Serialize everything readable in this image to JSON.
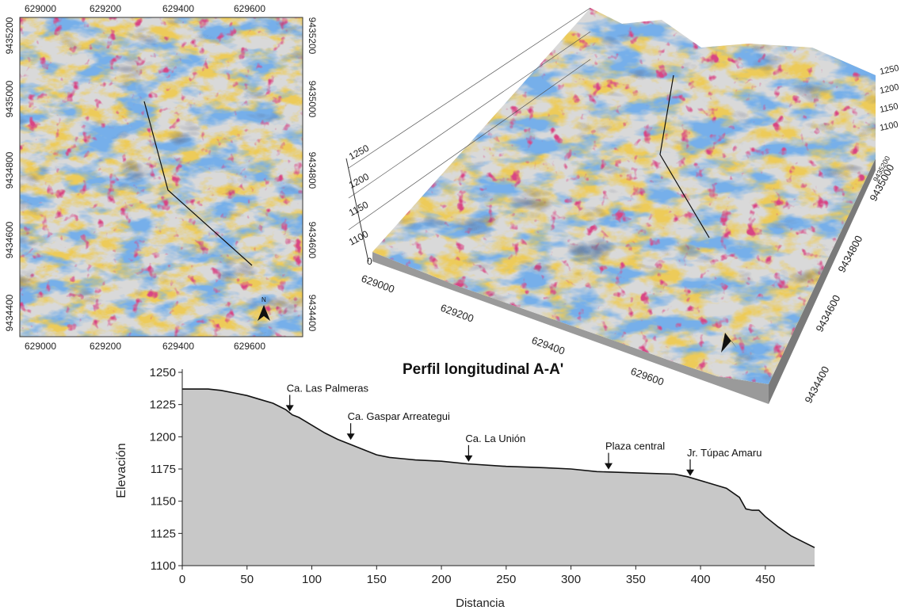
{
  "colors": {
    "blue": "#2f6fd0",
    "orange": "#d99a1a",
    "crimson": "#b0103a",
    "gray": "#cfcfcf",
    "profile_fill": "#c8c8c8",
    "profile_line": "#111111"
  },
  "map2d": {
    "x_ticks": [
      "629000",
      "629200",
      "629400",
      "629600"
    ],
    "y_ticks": [
      "9434400",
      "9434600",
      "9434800",
      "9435000",
      "9435200"
    ],
    "north_label": "N"
  },
  "map3d": {
    "x_ticks": [
      "629000",
      "629200",
      "629400",
      "629600"
    ],
    "y_ticks": [
      "9434400",
      "9434600",
      "9434800",
      "9435000",
      "9435200"
    ],
    "z_ticks_left": [
      "1100",
      "1150",
      "1200",
      "1250"
    ],
    "z_ticks_right": [
      "1100",
      "1150",
      "1200",
      "1250"
    ],
    "z_zero": "0"
  },
  "chart_data": {
    "type": "area",
    "title": "Perfil longitudinal A-A'",
    "xlabel": "Distancia",
    "ylabel": "Elevación",
    "xlim": [
      0,
      488
    ],
    "ylim": [
      1100,
      1250
    ],
    "x_ticks": [
      0,
      50,
      100,
      150,
      200,
      250,
      300,
      350,
      400,
      450
    ],
    "y_ticks": [
      1100,
      1125,
      1150,
      1175,
      1200,
      1225,
      1250
    ],
    "x": [
      0,
      10,
      20,
      30,
      40,
      50,
      60,
      70,
      80,
      85,
      90,
      100,
      110,
      120,
      130,
      140,
      150,
      160,
      170,
      180,
      200,
      220,
      250,
      280,
      300,
      320,
      350,
      380,
      390,
      400,
      410,
      420,
      430,
      435,
      440,
      445,
      450,
      460,
      470,
      480,
      488
    ],
    "y": [
      1237,
      1237,
      1237,
      1236,
      1234,
      1232,
      1229,
      1226,
      1221,
      1217,
      1215,
      1209,
      1203,
      1198,
      1194,
      1190,
      1186,
      1184,
      1183,
      1182,
      1181,
      1179,
      1177,
      1176,
      1175,
      1173,
      1172,
      1171,
      1169,
      1166,
      1163,
      1160,
      1153,
      1144,
      1143,
      1143,
      1138,
      1130,
      1123,
      1118,
      1114
    ],
    "annotations": [
      {
        "x": 83,
        "y": 1219,
        "label": "Ca. Las Palmeras"
      },
      {
        "x": 130,
        "y": 1197,
        "label": "Ca. Gaspar Arreategui"
      },
      {
        "x": 221,
        "y": 1180,
        "label": "Ca. La Unión"
      },
      {
        "x": 329,
        "y": 1174,
        "label": "Plaza central"
      },
      {
        "x": 392,
        "y": 1169,
        "label": "Jr. Túpac Amaru"
      }
    ]
  }
}
